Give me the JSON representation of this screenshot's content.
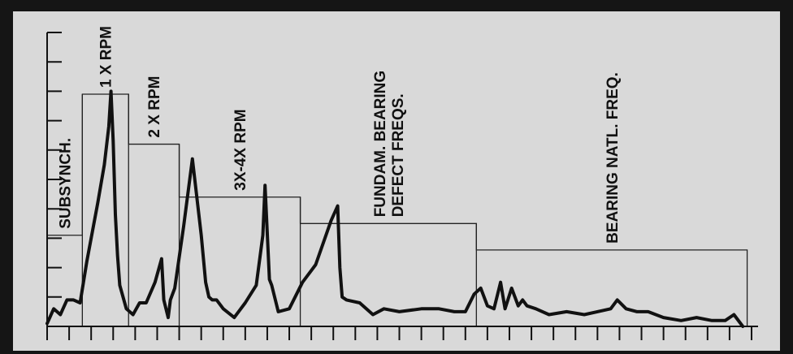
{
  "colors": {
    "border": "#151515",
    "background": "#d9d9d9",
    "line": "#111111"
  },
  "chart_data": {
    "type": "line",
    "title": "",
    "xlabel": "",
    "ylabel": "",
    "grid": false,
    "xlim": [
      0,
      32
    ],
    "ylim": [
      0,
      10
    ],
    "band_labels": [
      "SUBSYNCH.",
      "1 X RPM",
      "2 X RPM",
      "3X-4X RPM",
      "FUNDAM. BEARING\nDEFECT FREQS.",
      "BEARING NATL. FREQ."
    ],
    "bands": [
      {
        "label": "SUBSYNCH.",
        "x0": 0,
        "x1": 1.6,
        "level": 3.1
      },
      {
        "label": "1 X RPM",
        "x0": 1.6,
        "x1": 3.7,
        "level": 7.9
      },
      {
        "label": "2 X RPM",
        "x0": 3.7,
        "x1": 6.0,
        "level": 6.2
      },
      {
        "label": "3X-4X RPM",
        "x0": 6.0,
        "x1": 11.5,
        "level": 4.4
      },
      {
        "label": "FUNDAM. BEARING\nDEFECT FREQS.",
        "x0": 11.5,
        "x1": 19.5,
        "level": 3.5
      },
      {
        "label": "BEARING NATL. FREQ.",
        "x0": 19.5,
        "x1": 31.8,
        "level": 2.6
      }
    ],
    "series": [
      {
        "x": [
          0,
          0.3,
          0.6,
          0.9,
          1.2,
          1.5,
          1.8,
          2.0,
          2.3,
          2.6,
          2.8,
          2.9,
          3.0,
          3.1,
          3.2,
          3.3,
          3.6,
          3.9,
          4.2,
          4.5,
          4.9,
          5.2,
          5.3,
          5.4,
          5.5,
          5.6,
          5.8,
          6.2,
          6.6,
          7.0,
          7.2,
          7.35,
          7.5,
          7.7,
          8.0,
          8.5,
          9.0,
          9.5,
          9.8,
          9.9,
          10.0,
          10.1,
          10.2,
          10.5,
          11.0,
          11.6,
          12.2,
          12.9,
          13.2,
          13.3,
          13.4,
          13.6,
          14.2,
          14.8,
          15.3,
          16.0,
          17.0,
          17.8,
          18.5,
          19.0,
          19.4,
          19.7,
          20.0,
          20.3,
          20.6,
          20.8,
          21.1,
          21.4,
          21.6,
          21.8,
          22.2,
          22.8,
          23.6,
          24.4,
          25.0,
          25.6,
          25.9,
          26.3,
          26.8,
          27.3,
          28.0,
          28.8,
          29.5,
          30.2,
          30.8,
          31.2,
          31.6
        ],
        "y": [
          0.1,
          0.6,
          0.4,
          0.9,
          0.9,
          0.8,
          2.2,
          3.0,
          4.2,
          5.5,
          6.8,
          8.0,
          6.3,
          3.8,
          2.4,
          1.4,
          0.6,
          0.4,
          0.8,
          0.8,
          1.5,
          2.3,
          0.9,
          0.6,
          0.3,
          0.9,
          1.3,
          3.4,
          5.7,
          3.1,
          1.5,
          1.0,
          0.9,
          0.9,
          0.6,
          0.3,
          0.8,
          1.4,
          3.1,
          4.8,
          3.2,
          1.6,
          1.4,
          0.5,
          0.6,
          1.5,
          2.1,
          3.6,
          4.1,
          2.0,
          1.0,
          0.9,
          0.8,
          0.4,
          0.6,
          0.5,
          0.6,
          0.6,
          0.5,
          0.5,
          1.1,
          1.3,
          0.7,
          0.6,
          1.5,
          0.6,
          1.3,
          0.7,
          0.9,
          0.7,
          0.6,
          0.4,
          0.5,
          0.4,
          0.5,
          0.6,
          0.9,
          0.6,
          0.5,
          0.5,
          0.3,
          0.2,
          0.3,
          0.2,
          0.2,
          0.4,
          0.0
        ]
      }
    ]
  }
}
